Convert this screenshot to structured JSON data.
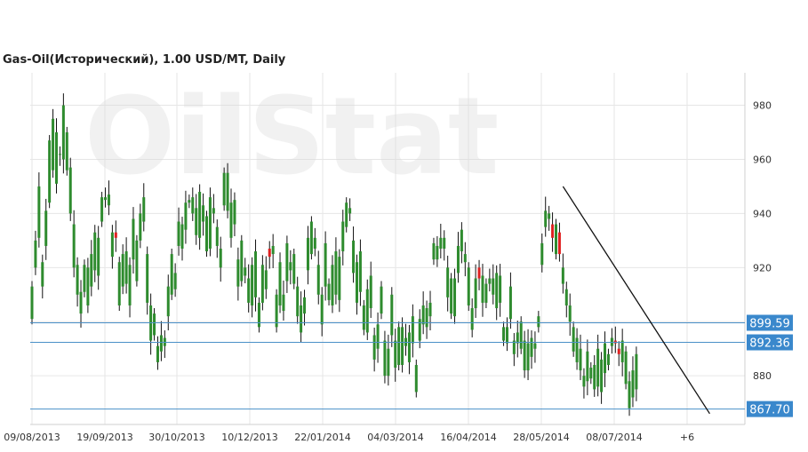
{
  "chart_data": {
    "type": "candlestick",
    "title": "Gas-Oil(Исторический), 1.00 USD/MT, Daily",
    "watermark": "OilStat",
    "ylim": [
      862,
      992
    ],
    "y_ticks": [
      880,
      900,
      920,
      940,
      960,
      980
    ],
    "y_tick_labels": [
      "880",
      "920",
      "940",
      "960",
      "980"
    ],
    "x_tick_labels": [
      "09/08/2013",
      "19/09/2013",
      "30/10/2013",
      "10/12/2013",
      "22/01/2014",
      "04/03/2014",
      "16/04/2014",
      "28/05/2014",
      "08/07/2014",
      "+6"
    ],
    "horizontal_levels": [
      899.59,
      892.36,
      867.7
    ],
    "horizontal_level_labels": [
      "899.59",
      "892.36",
      "867.70"
    ],
    "trendline": {
      "from": {
        "index": 152,
        "value": 950
      },
      "to": {
        "index": 194,
        "value": 866
      }
    },
    "colors": {
      "up": "#2e8b2e",
      "down": "#e02020",
      "level_line": "#4a90c8",
      "level_label_bg": "#3a88cc",
      "grid": "#e6e6e6"
    },
    "candles": [
      [
        901,
        913
      ],
      [
        920,
        930
      ],
      [
        931,
        950
      ],
      [
        913,
        922
      ],
      [
        928,
        941
      ],
      [
        944,
        967
      ],
      [
        956,
        975
      ],
      [
        951,
        970
      ],
      [
        962,
        962
      ],
      [
        960,
        980
      ],
      [
        956,
        970
      ],
      [
        940,
        957
      ],
      [
        920,
        936
      ],
      [
        910,
        921
      ],
      [
        903,
        911
      ],
      [
        911,
        921
      ],
      [
        906,
        920
      ],
      [
        913,
        925
      ],
      [
        919,
        933
      ],
      [
        917,
        931
      ],
      [
        937,
        946
      ],
      [
        945,
        946
      ],
      [
        943,
        947
      ],
      [
        924,
        933
      ],
      [
        933,
        931
      ],
      [
        906,
        922
      ],
      [
        913,
        925
      ],
      [
        914,
        926
      ],
      [
        906,
        921
      ],
      [
        923,
        938
      ],
      [
        915,
        930
      ],
      [
        930,
        940
      ],
      [
        937,
        946
      ],
      [
        907,
        925
      ],
      [
        893,
        906
      ],
      [
        895,
        903
      ],
      [
        885,
        891
      ],
      [
        889,
        895
      ],
      [
        891,
        894
      ],
      [
        902,
        913
      ],
      [
        910,
        925
      ],
      [
        912,
        918
      ],
      [
        928,
        937
      ],
      [
        927,
        936
      ],
      [
        934,
        944
      ],
      [
        944,
        945
      ],
      [
        940,
        946
      ],
      [
        932,
        942
      ],
      [
        931,
        948
      ],
      [
        937,
        943
      ],
      [
        926,
        939
      ],
      [
        927,
        946
      ],
      [
        940,
        942
      ],
      [
        928,
        935
      ],
      [
        920,
        927
      ],
      [
        943,
        955
      ],
      [
        941,
        955
      ],
      [
        931,
        944
      ],
      [
        936,
        945
      ],
      [
        913,
        923
      ],
      [
        915,
        930
      ],
      [
        917,
        920
      ],
      [
        907,
        916
      ],
      [
        906,
        921
      ],
      [
        909,
        926
      ],
      [
        898,
        907
      ],
      [
        907,
        921
      ],
      [
        912,
        919
      ],
      [
        927,
        924
      ],
      [
        925,
        928
      ],
      [
        898,
        910
      ],
      [
        906,
        922
      ],
      [
        904,
        910
      ],
      [
        915,
        929
      ],
      [
        919,
        922
      ],
      [
        914,
        925
      ],
      [
        902,
        913
      ],
      [
        896,
        906
      ],
      [
        903,
        909
      ],
      [
        919,
        931
      ],
      [
        925,
        937
      ],
      [
        927,
        931
      ],
      [
        910,
        921
      ],
      [
        899,
        910
      ],
      [
        913,
        929
      ],
      [
        908,
        914
      ],
      [
        906,
        921
      ],
      [
        910,
        926
      ],
      [
        908,
        924
      ],
      [
        926,
        937
      ],
      [
        935,
        944
      ],
      [
        940,
        942
      ],
      [
        918,
        930
      ],
      [
        907,
        922
      ],
      [
        911,
        926
      ],
      [
        897,
        906
      ],
      [
        896,
        912
      ],
      [
        905,
        917
      ],
      [
        886,
        895
      ],
      [
        890,
        899
      ],
      [
        903,
        913
      ],
      [
        880,
        893
      ],
      [
        880,
        890
      ],
      [
        895,
        910
      ],
      [
        883,
        893
      ],
      [
        884,
        898
      ],
      [
        884,
        898
      ],
      [
        891,
        894
      ],
      [
        885,
        896
      ],
      [
        892,
        902
      ],
      [
        874,
        884
      ],
      [
        893,
        901
      ],
      [
        899,
        906
      ],
      [
        898,
        905
      ],
      [
        902,
        907
      ],
      [
        923,
        929
      ],
      [
        923,
        928
      ],
      [
        927,
        931
      ],
      [
        927,
        931
      ],
      [
        909,
        920
      ],
      [
        903,
        916
      ],
      [
        902,
        916
      ],
      [
        918,
        928
      ],
      [
        926,
        934
      ],
      [
        922,
        925
      ],
      [
        906,
        920
      ],
      [
        897,
        905
      ],
      [
        905,
        916
      ],
      [
        920,
        916
      ],
      [
        907,
        917
      ],
      [
        907,
        914
      ],
      [
        914,
        916
      ],
      [
        910,
        916
      ],
      [
        905,
        918
      ],
      [
        907,
        917
      ],
      [
        893,
        898
      ],
      [
        892,
        898
      ],
      [
        901,
        913
      ],
      [
        888,
        893
      ],
      [
        892,
        896
      ],
      [
        890,
        900
      ],
      [
        882,
        893
      ],
      [
        882,
        892
      ],
      [
        887,
        894
      ],
      [
        890,
        892
      ],
      [
        898,
        902
      ],
      [
        921,
        929
      ],
      [
        935,
        941
      ],
      [
        938,
        940
      ],
      [
        936,
        931
      ],
      [
        925,
        936
      ],
      [
        933,
        925
      ],
      [
        914,
        920
      ],
      [
        906,
        912
      ],
      [
        900,
        906
      ],
      [
        889,
        898
      ],
      [
        885,
        894
      ],
      [
        882,
        890
      ],
      [
        876,
        880
      ],
      [
        878,
        889
      ],
      [
        879,
        883
      ],
      [
        875,
        884
      ],
      [
        876,
        890
      ],
      [
        874,
        886
      ],
      [
        881,
        892
      ],
      [
        884,
        888
      ],
      [
        891,
        894
      ],
      [
        893,
        892
      ],
      [
        890,
        888
      ],
      [
        885,
        893
      ],
      [
        877,
        889
      ],
      [
        868,
        878
      ],
      [
        872,
        882
      ],
      [
        875,
        888
      ]
    ]
  }
}
